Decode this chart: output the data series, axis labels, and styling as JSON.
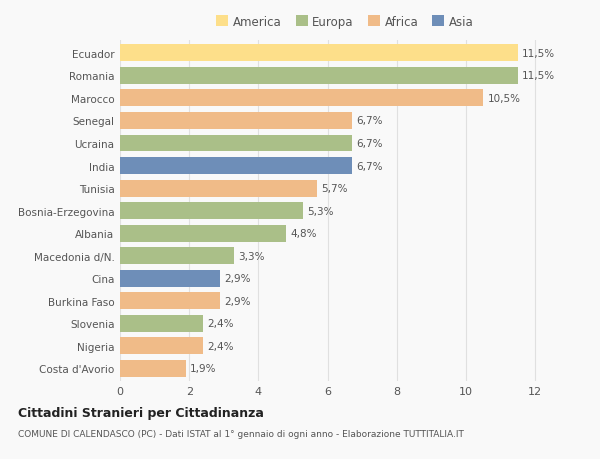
{
  "countries": [
    "Ecuador",
    "Romania",
    "Marocco",
    "Senegal",
    "Ucraina",
    "India",
    "Tunisia",
    "Bosnia-Erzegovina",
    "Albania",
    "Macedonia d/N.",
    "Cina",
    "Burkina Faso",
    "Slovenia",
    "Nigeria",
    "Costa d'Avorio"
  ],
  "values": [
    11.5,
    11.5,
    10.5,
    6.7,
    6.7,
    6.7,
    5.7,
    5.3,
    4.8,
    3.3,
    2.9,
    2.9,
    2.4,
    2.4,
    1.9
  ],
  "labels": [
    "11,5%",
    "11,5%",
    "10,5%",
    "6,7%",
    "6,7%",
    "6,7%",
    "5,7%",
    "5,3%",
    "4,8%",
    "3,3%",
    "2,9%",
    "2,9%",
    "2,4%",
    "2,4%",
    "1,9%"
  ],
  "continents": [
    "America",
    "Europa",
    "Africa",
    "Africa",
    "Europa",
    "Asia",
    "Africa",
    "Europa",
    "Europa",
    "Europa",
    "Asia",
    "Africa",
    "Europa",
    "Africa",
    "Africa"
  ],
  "colors": {
    "America": "#FDDF8A",
    "Europa": "#AABF88",
    "Africa": "#F0BB88",
    "Asia": "#6E8EB8"
  },
  "title": "Cittadini Stranieri per Cittadinanza",
  "subtitle": "COMUNE DI CALENDASCO (PC) - Dati ISTAT al 1° gennaio di ogni anno - Elaborazione TUTTITALIA.IT",
  "xlim": [
    0,
    13
  ],
  "xticks": [
    0,
    2,
    4,
    6,
    8,
    10,
    12
  ],
  "background_color": "#f9f9f9",
  "bar_height": 0.75,
  "grid_color": "#e0e0e0",
  "legend_order": [
    "America",
    "Europa",
    "Africa",
    "Asia"
  ]
}
